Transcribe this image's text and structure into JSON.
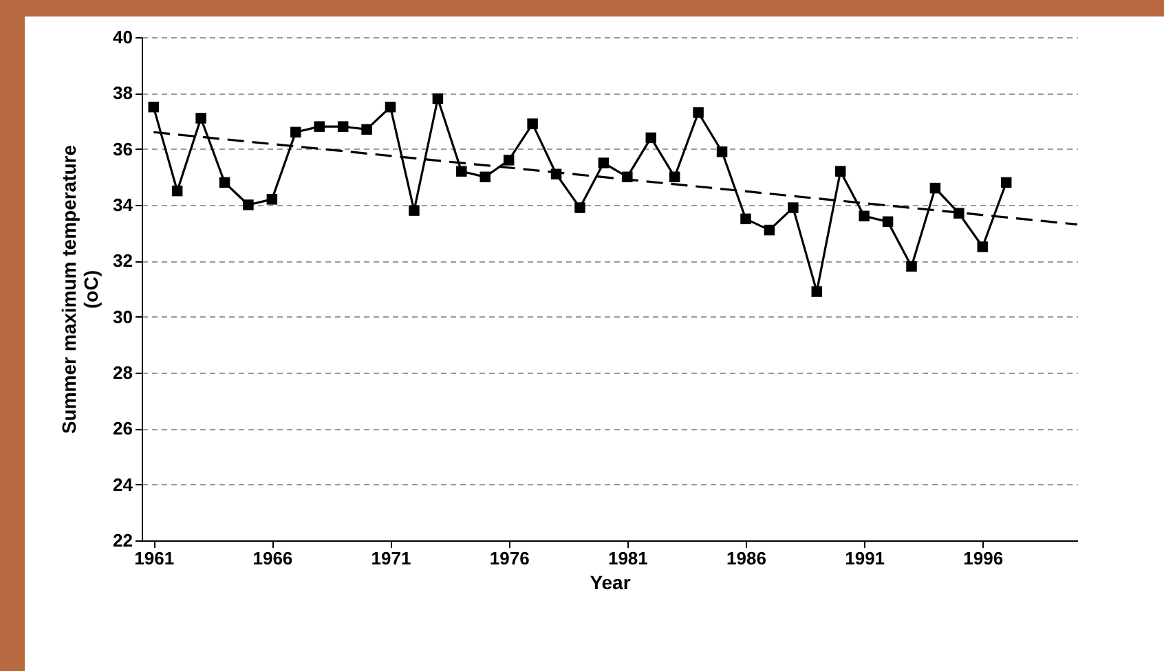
{
  "chart_data": {
    "type": "line",
    "xlabel": "Year",
    "ylabel": "Summer maximum temperature (oC)",
    "xlim": [
      1960.5,
      2000
    ],
    "xticks": [
      1961,
      1966,
      1971,
      1976,
      1981,
      1986,
      1991,
      1996
    ],
    "ylim": [
      22,
      40
    ],
    "yticks": [
      22,
      24,
      26,
      28,
      30,
      32,
      34,
      36,
      38,
      40
    ],
    "grid": "y",
    "series": [
      {
        "color": "#000000",
        "marker": "square",
        "line_style": "solid",
        "x": [
          1961,
          1962,
          1963,
          1964,
          1965,
          1966,
          1967,
          1968,
          1969,
          1970,
          1971,
          1972,
          1973,
          1974,
          1975,
          1976,
          1977,
          1978,
          1979,
          1980,
          1981,
          1982,
          1983,
          1984,
          1985,
          1986,
          1987,
          1988,
          1989,
          1990,
          1991,
          1992,
          1993,
          1994,
          1995,
          1996,
          1997
        ],
        "values": [
          37.5,
          34.5,
          37.1,
          34.8,
          34.0,
          34.2,
          36.6,
          36.8,
          36.8,
          36.7,
          37.5,
          33.8,
          37.8,
          35.2,
          35.0,
          35.6,
          36.9,
          35.1,
          33.9,
          35.5,
          35.0,
          36.4,
          35.0,
          37.3,
          35.9,
          33.5,
          33.1,
          33.9,
          30.9,
          35.2,
          33.6,
          33.4,
          31.8,
          34.6,
          33.7,
          32.5,
          34.8
        ]
      },
      {
        "type": "line",
        "color": "#000000",
        "marker": "none",
        "line_style": "dashed",
        "x": [
          1961,
          2000
        ],
        "values": [
          36.6,
          33.3
        ]
      }
    ]
  }
}
